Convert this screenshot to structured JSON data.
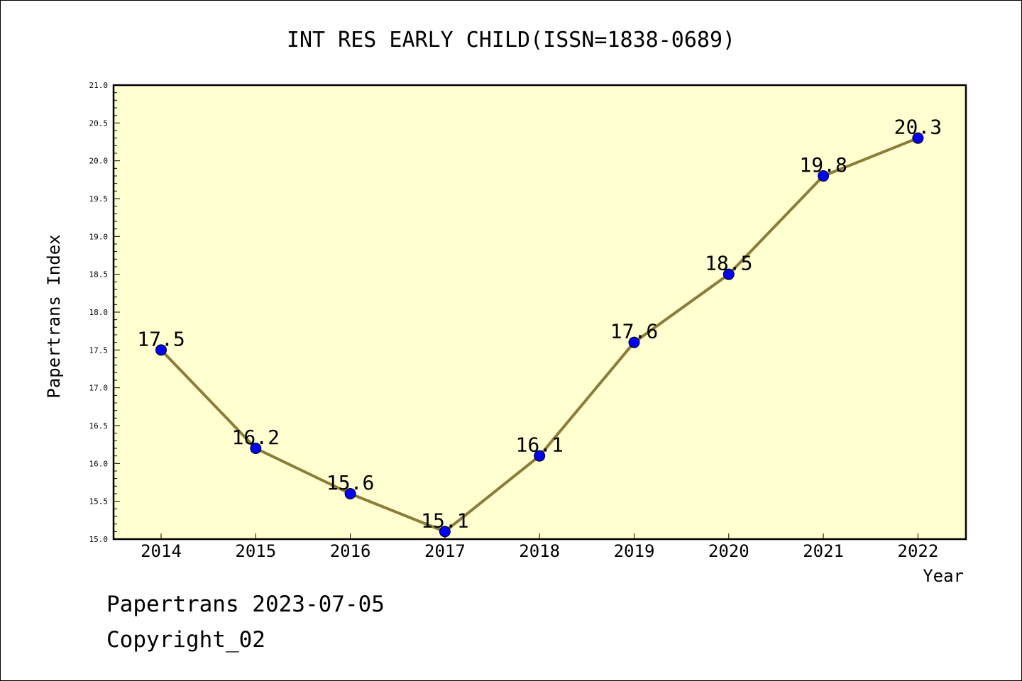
{
  "chart_data": {
    "type": "line",
    "title": "INT RES EARLY CHILD(ISSN=1838-0689)",
    "xlabel": "Year",
    "ylabel": "Papertrans Index",
    "categories": [
      "2014",
      "2015",
      "2016",
      "2017",
      "2018",
      "2019",
      "2020",
      "2021",
      "2022"
    ],
    "series": [
      {
        "values": [
          17.5,
          16.2,
          15.6,
          15.1,
          16.1,
          17.6,
          18.5,
          19.8,
          20.3
        ]
      }
    ],
    "data_labels": [
      "17.5",
      "16.2",
      "15.6",
      "15.1",
      "16.1",
      "17.6",
      "18.5",
      "19.8",
      "20.3"
    ],
    "yticks": [
      "15.0",
      "15.5",
      "16.0",
      "16.5",
      "17.0",
      "17.5",
      "18.0",
      "18.5",
      "19.0",
      "19.5",
      "20.0",
      "20.5",
      "21.0"
    ],
    "ylim": [
      15.0,
      21.0
    ],
    "grid": false,
    "colors": {
      "plot_background": "#ffffd0",
      "line": "#8b7d35",
      "marker": "#0000ff"
    }
  },
  "footer": {
    "date_line": "Papertrans 2023-07-05",
    "copyright": "Copyright_02"
  }
}
